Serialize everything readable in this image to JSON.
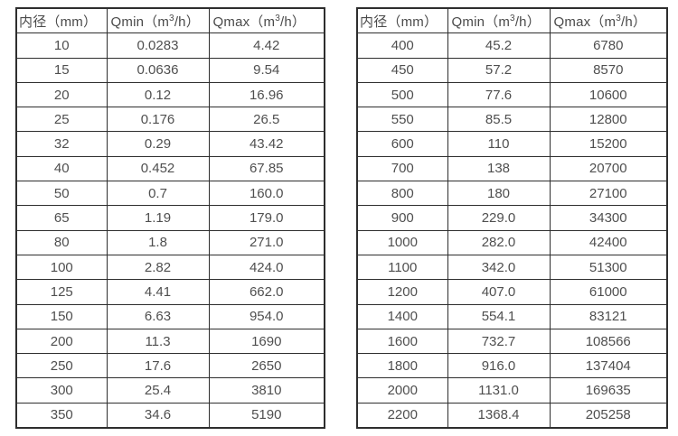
{
  "colors": {
    "border": "#2e2e2e",
    "text": "#4f4f4f",
    "background": "#ffffff"
  },
  "tables": [
    {
      "name": "flow-spec-table-dn10-350",
      "headers": [
        "内径（mm）",
        "Qmin（m³/h）",
        "Qmax（m³/h）"
      ],
      "rows": [
        [
          "10",
          "0.0283",
          "4.42"
        ],
        [
          "15",
          "0.0636",
          "9.54"
        ],
        [
          "20",
          "0.12",
          "16.96"
        ],
        [
          "25",
          "0.176",
          "26.5"
        ],
        [
          "32",
          "0.29",
          "43.42"
        ],
        [
          "40",
          "0.452",
          "67.85"
        ],
        [
          "50",
          "0.7",
          "160.0"
        ],
        [
          "65",
          "1.19",
          "179.0"
        ],
        [
          "80",
          "1.8",
          "271.0"
        ],
        [
          "100",
          "2.82",
          "424.0"
        ],
        [
          "125",
          "4.41",
          "662.0"
        ],
        [
          "150",
          "6.63",
          "954.0"
        ],
        [
          "200",
          "11.3",
          "1690"
        ],
        [
          "250",
          "17.6",
          "2650"
        ],
        [
          "300",
          "25.4",
          "3810"
        ],
        [
          "350",
          "34.6",
          "5190"
        ]
      ]
    },
    {
      "name": "flow-spec-table-dn400-2200",
      "headers": [
        "内径（mm）",
        "Qmin（m³/h）",
        "Qmax（m³/h）"
      ],
      "rows": [
        [
          "400",
          "45.2",
          "6780"
        ],
        [
          "450",
          "57.2",
          "8570"
        ],
        [
          "500",
          "77.6",
          "10600"
        ],
        [
          "550",
          "85.5",
          "12800"
        ],
        [
          "600",
          "110",
          "15200"
        ],
        [
          "700",
          "138",
          "20700"
        ],
        [
          "800",
          "180",
          "27100"
        ],
        [
          "900",
          "229.0",
          "34300"
        ],
        [
          "1000",
          "282.0",
          "42400"
        ],
        [
          "1100",
          "342.0",
          "51300"
        ],
        [
          "1200",
          "407.0",
          "61000"
        ],
        [
          "1400",
          "554.1",
          "83121"
        ],
        [
          "1600",
          "732.7",
          "108566"
        ],
        [
          "1800",
          "916.0",
          "137404"
        ],
        [
          "2000",
          "1131.0",
          "169635"
        ],
        [
          "2200",
          "1368.4",
          "205258"
        ]
      ]
    }
  ],
  "chart_data": {
    "type": "table",
    "title": "",
    "tables": [
      {
        "columns": [
          "内径（mm）",
          "Qmin（m³/h）",
          "Qmax（m³/h）"
        ],
        "rows": [
          [
            10,
            0.0283,
            4.42
          ],
          [
            15,
            0.0636,
            9.54
          ],
          [
            20,
            0.12,
            16.96
          ],
          [
            25,
            0.176,
            26.5
          ],
          [
            32,
            0.29,
            43.42
          ],
          [
            40,
            0.452,
            67.85
          ],
          [
            50,
            0.7,
            160.0
          ],
          [
            65,
            1.19,
            179.0
          ],
          [
            80,
            1.8,
            271.0
          ],
          [
            100,
            2.82,
            424.0
          ],
          [
            125,
            4.41,
            662.0
          ],
          [
            150,
            6.63,
            954.0
          ],
          [
            200,
            11.3,
            1690
          ],
          [
            250,
            17.6,
            2650
          ],
          [
            300,
            25.4,
            3810
          ],
          [
            350,
            34.6,
            5190
          ]
        ]
      },
      {
        "columns": [
          "内径（mm）",
          "Qmin（m³/h）",
          "Qmax（m³/h）"
        ],
        "rows": [
          [
            400,
            45.2,
            6780
          ],
          [
            450,
            57.2,
            8570
          ],
          [
            500,
            77.6,
            10600
          ],
          [
            550,
            85.5,
            12800
          ],
          [
            600,
            110,
            15200
          ],
          [
            700,
            138,
            20700
          ],
          [
            800,
            180,
            27100
          ],
          [
            900,
            229.0,
            34300
          ],
          [
            1000,
            282.0,
            42400
          ],
          [
            1100,
            342.0,
            51300
          ],
          [
            1200,
            407.0,
            61000
          ],
          [
            1400,
            554.1,
            83121
          ],
          [
            1600,
            732.7,
            108566
          ],
          [
            1800,
            916.0,
            137404
          ],
          [
            2000,
            1131.0,
            169635
          ],
          [
            2200,
            1368.4,
            205258
          ]
        ]
      }
    ]
  }
}
